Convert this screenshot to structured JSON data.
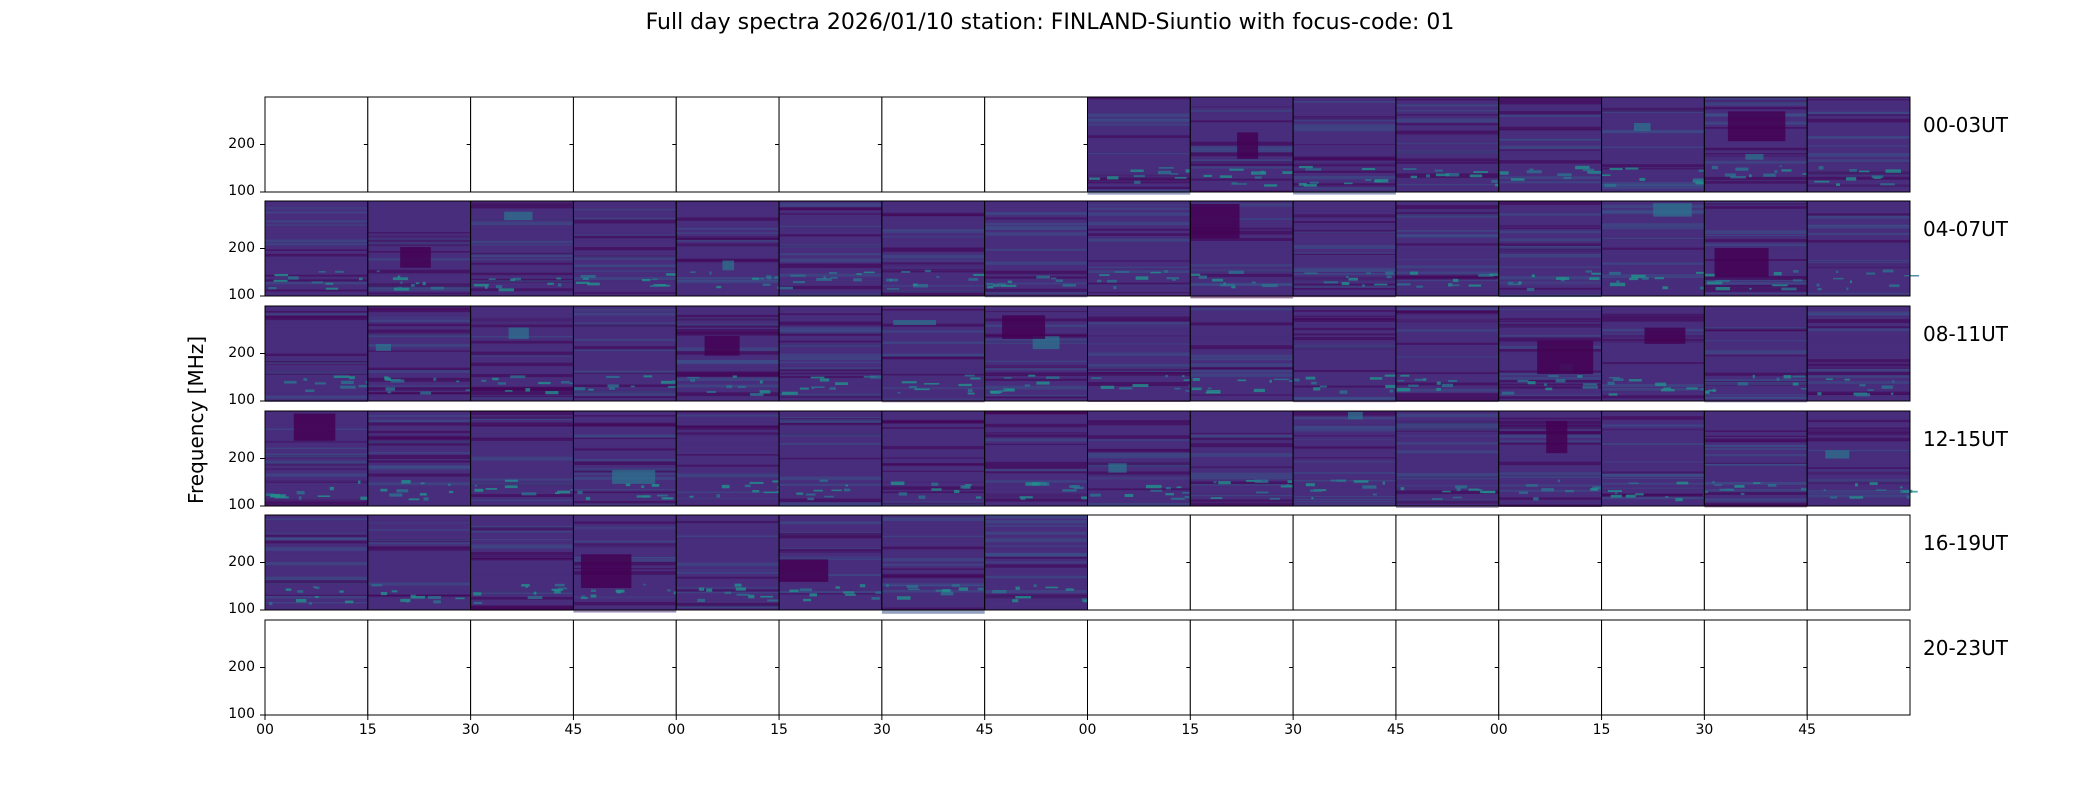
{
  "chart_data": {
    "type": "heatmap",
    "title": "Full day spectra 2026/01/10 station: FINLAND-Siuntio with focus-code: 01",
    "ylabel": "Frequency [MHz]",
    "yticks": [
      200,
      100
    ],
    "xticks": [
      "00",
      "15",
      "30",
      "45",
      "00",
      "15",
      "30",
      "45",
      "00",
      "15",
      "30",
      "45",
      "00",
      "15",
      "30",
      "45"
    ],
    "colormap": [
      "#440154",
      "#472d7b",
      "#3b528b",
      "#2c728e",
      "#21918c"
    ],
    "rows": [
      {
        "label": "00-03UT",
        "panels_with_data": [
          8,
          9,
          10,
          11,
          12,
          13,
          14,
          15
        ]
      },
      {
        "label": "04-07UT",
        "panels_with_data": [
          0,
          1,
          2,
          3,
          4,
          5,
          6,
          7,
          8,
          9,
          10,
          11,
          12,
          13,
          14,
          15
        ]
      },
      {
        "label": "08-11UT",
        "panels_with_data": [
          0,
          1,
          2,
          3,
          4,
          5,
          6,
          7,
          8,
          9,
          10,
          11,
          12,
          13,
          14,
          15
        ]
      },
      {
        "label": "12-15UT",
        "panels_with_data": [
          0,
          1,
          2,
          3,
          4,
          5,
          6,
          7,
          8,
          9,
          10,
          11,
          12,
          13,
          14,
          15
        ]
      },
      {
        "label": "16-19UT",
        "panels_with_data": [
          0,
          1,
          2,
          3,
          4,
          5,
          6,
          7
        ]
      },
      {
        "label": "20-23UT",
        "panels_with_data": []
      }
    ]
  }
}
